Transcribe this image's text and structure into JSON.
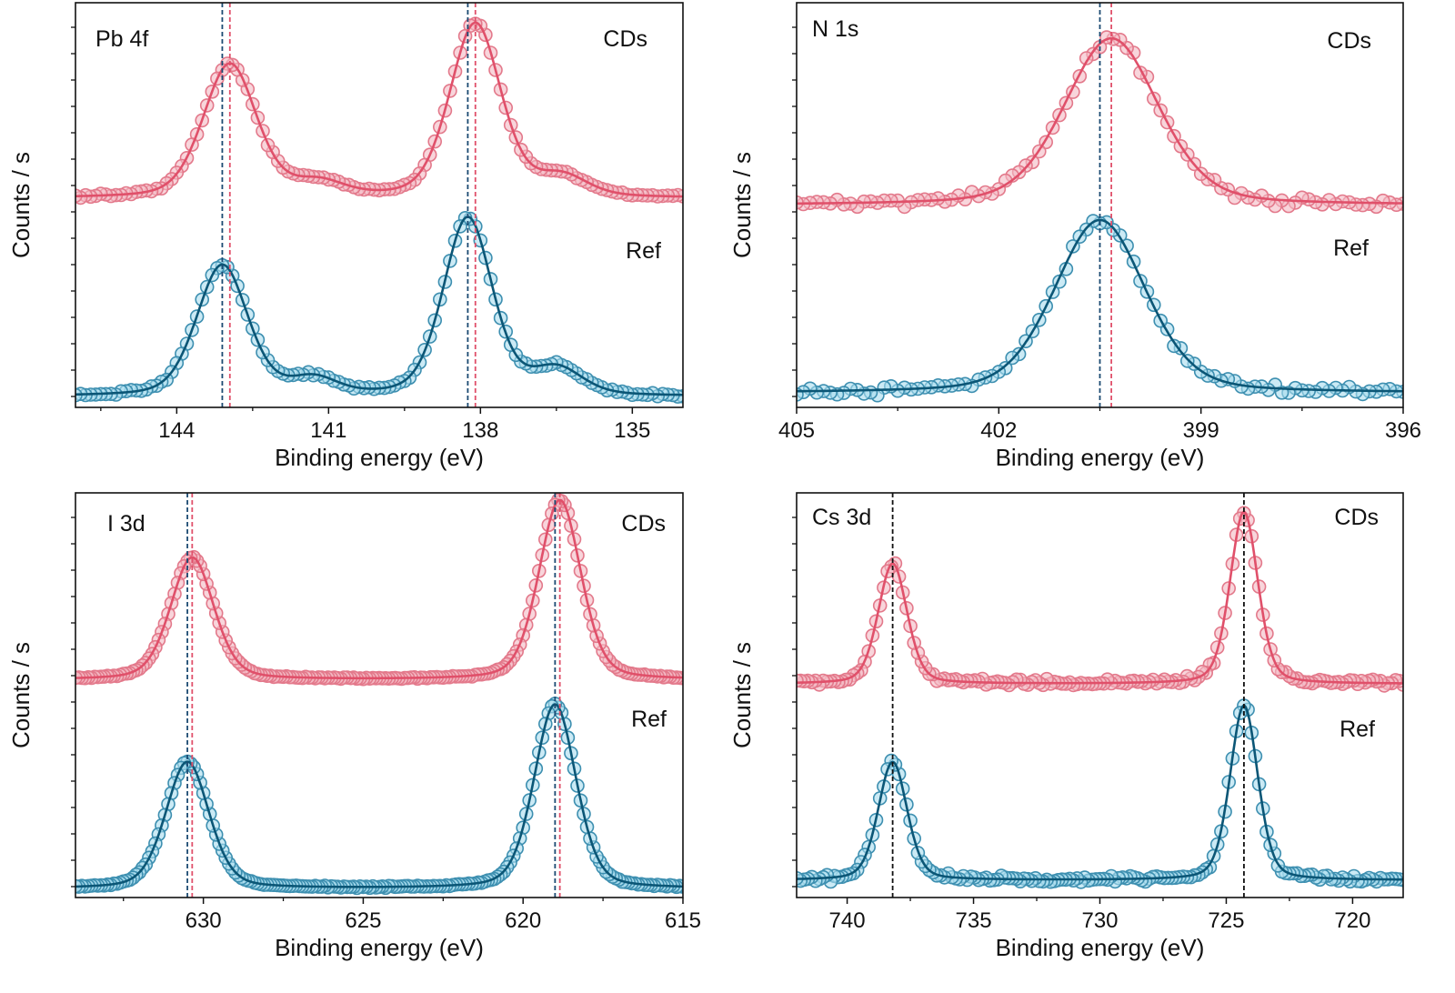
{
  "colors": {
    "cds_line": "#e0506a",
    "cds_marker_fill": "#f4b9c3",
    "cds_marker_stroke": "#e3798b",
    "ref_line": "#0b5676",
    "ref_marker_fill": "#a9dcee",
    "ref_marker_stroke": "#3d8fb0",
    "ref_dash": "#1b4a72",
    "cds_dash": "#e0506a",
    "neutral_dash": "#111111"
  },
  "chart_data": [
    {
      "type": "scatter",
      "panel_label": "Pb 4f",
      "xlabel": "Binding energy (eV)",
      "ylabel": "Counts / s",
      "xlim": [
        146,
        134
      ],
      "x_reversed": true,
      "x_ticks": [
        "144",
        "141",
        "138",
        "135"
      ],
      "x_tick_values": [
        144,
        141,
        138,
        135
      ],
      "x_minor_step": 1.5,
      "y_tick_labels_shown": false,
      "ylim": [
        0,
        1
      ],
      "grid": false,
      "energy_step": 0.1,
      "series": [
        {
          "name": "CDs",
          "kind": "cds",
          "baseline": 0.517,
          "peaks": [
            {
              "center": 142.95,
              "fwhm": 1.25,
              "height": 0.33
            },
            {
              "center": 138.1,
              "fwhm": 1.2,
              "height": 0.43
            },
            {
              "center": 141.2,
              "fwhm": 1.2,
              "height": 0.035
            },
            {
              "center": 136.4,
              "fwhm": 1.2,
              "height": 0.05
            }
          ]
        },
        {
          "name": "Ref",
          "kind": "ref",
          "baseline": 0.027,
          "peaks": [
            {
              "center": 143.1,
              "fwhm": 1.2,
              "height": 0.323
            },
            {
              "center": 138.25,
              "fwhm": 1.15,
              "height": 0.44
            },
            {
              "center": 141.3,
              "fwhm": 1.1,
              "height": 0.04
            },
            {
              "center": 136.5,
              "fwhm": 1.2,
              "height": 0.065
            }
          ]
        }
      ],
      "reference_lines": [
        {
          "x": 143.1,
          "color_key": "ref_dash"
        },
        {
          "x": 142.95,
          "color_key": "cds_dash"
        },
        {
          "x": 138.25,
          "color_key": "ref_dash"
        },
        {
          "x": 138.1,
          "color_key": "cds_dash"
        }
      ]
    },
    {
      "type": "scatter",
      "panel_label": "N 1s",
      "xlabel": "Binding energy (eV)",
      "ylabel": "Counts / s",
      "xlim": [
        405,
        396
      ],
      "x_reversed": true,
      "x_ticks": [
        "405",
        "402",
        "399",
        "396"
      ],
      "x_tick_values": [
        405,
        402,
        399,
        396
      ],
      "x_minor_step": 1.5,
      "y_tick_labels_shown": false,
      "ylim": [
        0,
        1
      ],
      "grid": false,
      "energy_step": 0.1,
      "series": [
        {
          "name": "CDs",
          "kind": "cds",
          "baseline": 0.5,
          "peaks": [
            {
              "center": 400.33,
              "fwhm": 1.65,
              "height": 0.412
            }
          ]
        },
        {
          "name": "Ref",
          "kind": "ref",
          "baseline": 0.036,
          "peaks": [
            {
              "center": 400.5,
              "fwhm": 1.6,
              "height": 0.427
            }
          ]
        }
      ],
      "reference_lines": [
        {
          "x": 400.5,
          "color_key": "ref_dash"
        },
        {
          "x": 400.33,
          "color_key": "cds_dash"
        }
      ]
    },
    {
      "type": "scatter",
      "panel_label": "I 3d",
      "xlabel": "Binding energy (eV)",
      "ylabel": "Counts / s",
      "xlim": [
        634,
        615
      ],
      "x_reversed": true,
      "x_ticks": [
        "630",
        "625",
        "620",
        "615"
      ],
      "x_tick_values": [
        630,
        625,
        620,
        615
      ],
      "x_minor_step": 2.5,
      "y_tick_labels_shown": false,
      "ylim": [
        0,
        1
      ],
      "grid": false,
      "energy_step": 0.1,
      "series": [
        {
          "name": "CDs",
          "kind": "cds",
          "baseline": 0.538,
          "peaks": [
            {
              "center": 630.35,
              "fwhm": 1.6,
              "height": 0.302
            },
            {
              "center": 618.85,
              "fwhm": 1.55,
              "height": 0.444
            }
          ]
        },
        {
          "name": "Ref",
          "kind": "ref",
          "baseline": 0.022,
          "peaks": [
            {
              "center": 630.5,
              "fwhm": 1.6,
              "height": 0.313
            },
            {
              "center": 619.0,
              "fwhm": 1.55,
              "height": 0.455
            }
          ]
        }
      ],
      "reference_lines": [
        {
          "x": 630.5,
          "color_key": "ref_dash"
        },
        {
          "x": 630.35,
          "color_key": "cds_dash"
        },
        {
          "x": 619.0,
          "color_key": "ref_dash"
        },
        {
          "x": 618.85,
          "color_key": "cds_dash"
        }
      ]
    },
    {
      "type": "scatter",
      "panel_label": "Cs 3d",
      "xlabel": "Binding energy (eV)",
      "ylabel": "Counts / s",
      "xlim": [
        742,
        718
      ],
      "x_reversed": true,
      "x_ticks": [
        "740",
        "735",
        "730",
        "725",
        "720"
      ],
      "x_tick_values": [
        740,
        735,
        730,
        725,
        720
      ],
      "x_minor_step": 2.5,
      "y_tick_labels_shown": false,
      "ylim": [
        0,
        1
      ],
      "grid": false,
      "energy_step": 0.15,
      "series": [
        {
          "name": "CDs",
          "kind": "cds",
          "baseline": 0.528,
          "peaks": [
            {
              "center": 738.2,
              "fwhm": 1.35,
              "height": 0.297
            },
            {
              "center": 724.3,
              "fwhm": 1.3,
              "height": 0.425
            }
          ]
        },
        {
          "name": "Ref",
          "kind": "ref",
          "baseline": 0.043,
          "peaks": [
            {
              "center": 738.2,
              "fwhm": 1.35,
              "height": 0.292
            },
            {
              "center": 724.3,
              "fwhm": 1.3,
              "height": 0.431
            }
          ]
        }
      ],
      "reference_lines": [
        {
          "x": 738.2,
          "color_key": "neutral_dash"
        },
        {
          "x": 724.3,
          "color_key": "neutral_dash"
        }
      ]
    }
  ]
}
